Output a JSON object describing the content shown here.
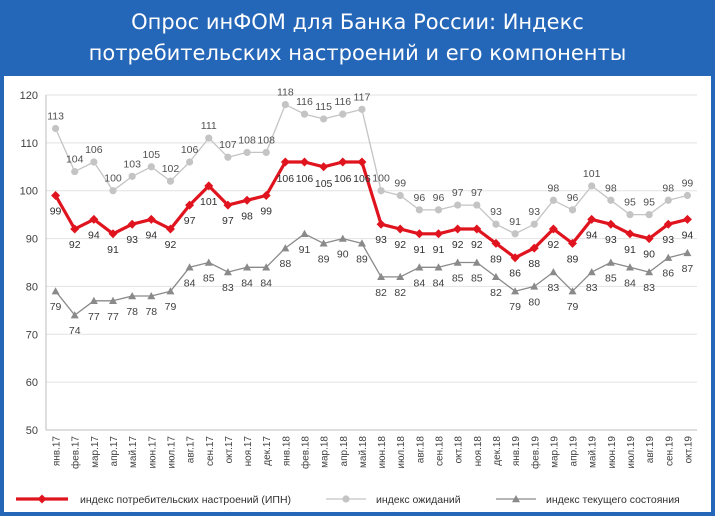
{
  "title_lines": [
    "Опрос инФОМ для Банка России: Индекс",
    "потребительских настроений и его компоненты"
  ],
  "chart_data": {
    "type": "line",
    "ylim": [
      50,
      120
    ],
    "y_ticks": [
      50,
      60,
      70,
      80,
      90,
      100,
      110,
      120
    ],
    "grid": "horizontal",
    "legend_position": "bottom",
    "categories": [
      "янв.17",
      "фев.17",
      "мар.17",
      "апр.17",
      "май.17",
      "июн.17",
      "июл.17",
      "авг.17",
      "сен.17",
      "окт.17",
      "ноя.17",
      "дек.17",
      "янв.18",
      "фев.18",
      "мар.18",
      "апр.18",
      "май.18",
      "июн.18",
      "июл.18",
      "авг.18",
      "сен.18",
      "окт.18",
      "ноя.18",
      "дек.18",
      "янв.19",
      "фев.19",
      "мар.19",
      "апр.19",
      "май.19",
      "июн.19",
      "июл.19",
      "авг.19",
      "сен.19",
      "окт.19"
    ],
    "series": [
      {
        "name": "индекс потребительских настроений (ИПН)",
        "color": "#e0141e",
        "marker": "diamond",
        "values": [
          99,
          92,
          94,
          91,
          93,
          94,
          92,
          97,
          101,
          97,
          98,
          99,
          106,
          106,
          105,
          106,
          106,
          93,
          92,
          91,
          91,
          92,
          92,
          89,
          86,
          88,
          92,
          89,
          94,
          93,
          91,
          90,
          93,
          94
        ]
      },
      {
        "name": "индекс ожиданий",
        "color": "#c4c4c4",
        "marker": "circle",
        "values": [
          113,
          104,
          106,
          100,
          103,
          105,
          102,
          106,
          111,
          107,
          108,
          108,
          118,
          116,
          115,
          116,
          117,
          100,
          99,
          96,
          96,
          97,
          97,
          93,
          91,
          93,
          98,
          96,
          101,
          98,
          95,
          95,
          98,
          99
        ]
      },
      {
        "name": "индекс текущего состояния",
        "color": "#8a8a8a",
        "marker": "triangle",
        "values": [
          79,
          74,
          77,
          77,
          78,
          78,
          79,
          84,
          85,
          83,
          84,
          84,
          88,
          91,
          89,
          90,
          89,
          82,
          82,
          84,
          84,
          85,
          85,
          82,
          79,
          80,
          83,
          79,
          83,
          85,
          84,
          83,
          86,
          87
        ]
      }
    ]
  }
}
